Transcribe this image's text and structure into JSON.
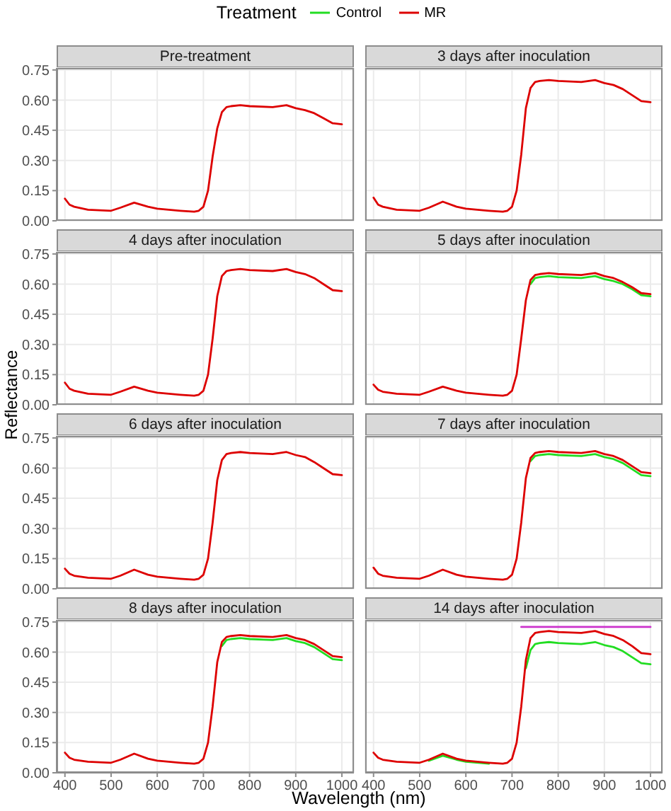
{
  "chart_data": [
    {
      "type": "line",
      "title": "Pre-treatment",
      "legend_title": "Treatment",
      "legend": "top",
      "grid": true,
      "tick_labels": "y",
      "xlim": [
        382,
        1026
      ],
      "xticks": [
        400,
        500,
        600,
        700,
        800,
        900,
        1000
      ],
      "ylim": [
        0,
        0.76
      ],
      "yticks": [
        {
          "value": 0,
          "label": "0.00"
        },
        {
          "value": 0.15,
          "label": "0.15"
        },
        {
          "value": 0.3,
          "label": "0.30"
        },
        {
          "value": 0.45,
          "label": "0.45"
        },
        {
          "value": 0.6,
          "label": "0.60"
        },
        {
          "value": 0.75,
          "label": "0.75"
        }
      ],
      "x": [
        400,
        410,
        420,
        450,
        500,
        520,
        550,
        580,
        600,
        650,
        680,
        690,
        700,
        710,
        720,
        730,
        740,
        750,
        760,
        780,
        800,
        850,
        880,
        900,
        920,
        940,
        960,
        980,
        1000
      ],
      "series": [
        {
          "name": "Control",
          "color": "#22dd22",
          "values": [
            null,
            null,
            null,
            null,
            null,
            null,
            null,
            null,
            null,
            null,
            null,
            null,
            null,
            null,
            null,
            null,
            null,
            null,
            null,
            null,
            null,
            null,
            null,
            null,
            null,
            null,
            null,
            null,
            null
          ]
        },
        {
          "name": "MR",
          "color": "#dd0000",
          "values": [
            0.11,
            0.08,
            0.07,
            0.055,
            0.05,
            0.065,
            0.09,
            0.07,
            0.06,
            0.05,
            0.045,
            0.05,
            0.07,
            0.15,
            0.32,
            0.46,
            0.54,
            0.565,
            0.57,
            0.575,
            0.57,
            0.565,
            0.575,
            0.56,
            0.55,
            0.535,
            0.51,
            0.485,
            0.48
          ]
        }
      ]
    },
    {
      "type": "line",
      "title": "3 days after inoculation",
      "grid": true,
      "tick_labels": false,
      "xlim": [
        382,
        1026
      ],
      "xticks": [
        400,
        500,
        600,
        700,
        800,
        900,
        1000
      ],
      "ylim": [
        0,
        0.76
      ],
      "yticks": [
        0,
        0.15,
        0.3,
        0.45,
        0.6,
        0.75
      ],
      "x": [
        400,
        410,
        420,
        450,
        500,
        520,
        550,
        580,
        600,
        650,
        680,
        690,
        700,
        710,
        720,
        730,
        740,
        750,
        760,
        780,
        800,
        850,
        880,
        900,
        920,
        940,
        960,
        980,
        1000
      ],
      "series": [
        {
          "color": "#22dd22",
          "values": [
            null,
            null,
            null,
            null,
            null,
            null,
            null,
            null,
            null,
            null,
            null,
            null,
            null,
            null,
            null,
            null,
            null,
            null,
            null,
            null,
            null,
            null,
            null,
            null,
            null,
            null,
            null,
            null,
            null
          ]
        },
        {
          "color": "#dd0000",
          "values": [
            0.115,
            0.08,
            0.07,
            0.055,
            0.05,
            0.065,
            0.095,
            0.07,
            0.06,
            0.05,
            0.045,
            0.05,
            0.07,
            0.15,
            0.33,
            0.56,
            0.66,
            0.69,
            0.695,
            0.7,
            0.695,
            0.69,
            0.7,
            0.685,
            0.675,
            0.655,
            0.625,
            0.595,
            0.59
          ]
        }
      ]
    },
    {
      "type": "line",
      "title": "4 days after inoculation",
      "ylabel": "Reflectance",
      "grid": true,
      "tick_labels": "y",
      "xlim": [
        382,
        1026
      ],
      "xticks": [
        400,
        500,
        600,
        700,
        800,
        900,
        1000
      ],
      "ylim": [
        0,
        0.76
      ],
      "yticks": [
        {
          "value": 0,
          "label": "0.00"
        },
        {
          "value": 0.15,
          "label": "0.15"
        },
        {
          "value": 0.3,
          "label": "0.30"
        },
        {
          "value": 0.45,
          "label": "0.45"
        },
        {
          "value": 0.6,
          "label": "0.60"
        },
        {
          "value": 0.75,
          "label": "0.75"
        }
      ],
      "x": [
        400,
        410,
        420,
        450,
        500,
        520,
        550,
        580,
        600,
        650,
        680,
        690,
        700,
        710,
        720,
        730,
        740,
        750,
        760,
        780,
        800,
        850,
        880,
        900,
        920,
        940,
        960,
        980,
        1000
      ],
      "series": [
        {
          "color": "#22dd22",
          "values": [
            null,
            null,
            null,
            null,
            null,
            null,
            null,
            null,
            null,
            null,
            null,
            null,
            null,
            null,
            null,
            null,
            null,
            null,
            null,
            null,
            null,
            null,
            null,
            null,
            null,
            null,
            null,
            null,
            null
          ]
        },
        {
          "color": "#dd0000",
          "values": [
            0.11,
            0.08,
            0.07,
            0.055,
            0.05,
            0.065,
            0.09,
            0.07,
            0.06,
            0.05,
            0.045,
            0.05,
            0.07,
            0.15,
            0.33,
            0.54,
            0.64,
            0.665,
            0.67,
            0.675,
            0.67,
            0.665,
            0.675,
            0.66,
            0.65,
            0.63,
            0.6,
            0.57,
            0.565
          ]
        }
      ]
    },
    {
      "type": "line",
      "title": "5 days after inoculation",
      "grid": true,
      "tick_labels": false,
      "xlim": [
        382,
        1026
      ],
      "xticks": [
        400,
        500,
        600,
        700,
        800,
        900,
        1000
      ],
      "ylim": [
        0,
        0.76
      ],
      "yticks": [
        0,
        0.15,
        0.3,
        0.45,
        0.6,
        0.75
      ],
      "x": [
        400,
        410,
        420,
        450,
        500,
        520,
        550,
        580,
        600,
        650,
        680,
        690,
        700,
        710,
        720,
        730,
        740,
        750,
        760,
        780,
        800,
        850,
        880,
        900,
        920,
        940,
        960,
        980,
        1000
      ],
      "series": [
        {
          "color": "#22dd22",
          "values": [
            null,
            null,
            null,
            null,
            null,
            null,
            null,
            null,
            null,
            null,
            null,
            null,
            null,
            null,
            null,
            null,
            0.6,
            0.63,
            0.635,
            0.64,
            0.635,
            0.63,
            0.64,
            0.625,
            0.615,
            0.6,
            0.575,
            0.545,
            0.54
          ]
        },
        {
          "color": "#dd0000",
          "values": [
            0.1,
            0.075,
            0.065,
            0.055,
            0.05,
            0.065,
            0.09,
            0.07,
            0.06,
            0.05,
            0.045,
            0.05,
            0.07,
            0.15,
            0.33,
            0.52,
            0.62,
            0.645,
            0.65,
            0.655,
            0.65,
            0.645,
            0.655,
            0.64,
            0.63,
            0.61,
            0.585,
            0.555,
            0.55
          ]
        }
      ]
    },
    {
      "type": "line",
      "title": "6 days after inoculation",
      "grid": true,
      "tick_labels": "y",
      "xlim": [
        382,
        1026
      ],
      "xticks": [
        400,
        500,
        600,
        700,
        800,
        900,
        1000
      ],
      "ylim": [
        0,
        0.76
      ],
      "yticks": [
        {
          "value": 0,
          "label": "0.00"
        },
        {
          "value": 0.15,
          "label": "0.15"
        },
        {
          "value": 0.3,
          "label": "0.30"
        },
        {
          "value": 0.45,
          "label": "0.45"
        },
        {
          "value": 0.6,
          "label": "0.60"
        },
        {
          "value": 0.75,
          "label": "0.75"
        }
      ],
      "x": [
        400,
        410,
        420,
        450,
        500,
        520,
        550,
        580,
        600,
        650,
        680,
        690,
        700,
        710,
        720,
        730,
        740,
        750,
        760,
        780,
        800,
        850,
        880,
        900,
        920,
        940,
        960,
        980,
        1000
      ],
      "series": [
        {
          "color": "#22dd22",
          "values": [
            null,
            null,
            null,
            null,
            null,
            null,
            null,
            null,
            null,
            null,
            null,
            null,
            null,
            null,
            null,
            null,
            null,
            null,
            null,
            null,
            null,
            null,
            null,
            null,
            null,
            null,
            null,
            null,
            null
          ]
        },
        {
          "color": "#dd0000",
          "values": [
            0.1,
            0.075,
            0.065,
            0.055,
            0.05,
            0.065,
            0.095,
            0.07,
            0.06,
            0.05,
            0.045,
            0.05,
            0.07,
            0.15,
            0.33,
            0.54,
            0.64,
            0.67,
            0.675,
            0.68,
            0.675,
            0.67,
            0.68,
            0.665,
            0.655,
            0.63,
            0.6,
            0.57,
            0.565
          ]
        }
      ]
    },
    {
      "type": "line",
      "title": "7 days after inoculation",
      "grid": true,
      "tick_labels": false,
      "xlim": [
        382,
        1026
      ],
      "xticks": [
        400,
        500,
        600,
        700,
        800,
        900,
        1000
      ],
      "ylim": [
        0,
        0.76
      ],
      "yticks": [
        0,
        0.15,
        0.3,
        0.45,
        0.6,
        0.75
      ],
      "x": [
        400,
        410,
        420,
        450,
        500,
        520,
        550,
        580,
        600,
        650,
        680,
        690,
        700,
        710,
        720,
        730,
        740,
        750,
        760,
        780,
        800,
        850,
        880,
        900,
        920,
        940,
        960,
        980,
        1000
      ],
      "series": [
        {
          "color": "#22dd22",
          "values": [
            null,
            null,
            null,
            null,
            null,
            null,
            null,
            null,
            null,
            null,
            null,
            null,
            null,
            null,
            null,
            null,
            0.635,
            0.66,
            0.665,
            0.67,
            0.665,
            0.66,
            0.67,
            0.655,
            0.645,
            0.625,
            0.595,
            0.565,
            0.56
          ]
        },
        {
          "color": "#dd0000",
          "values": [
            0.105,
            0.075,
            0.065,
            0.055,
            0.05,
            0.065,
            0.095,
            0.07,
            0.06,
            0.05,
            0.045,
            0.05,
            0.07,
            0.15,
            0.33,
            0.55,
            0.65,
            0.675,
            0.68,
            0.685,
            0.68,
            0.675,
            0.685,
            0.67,
            0.66,
            0.64,
            0.61,
            0.58,
            0.575
          ]
        }
      ]
    },
    {
      "type": "line",
      "title": "8 days after inoculation",
      "xlabel": "Wavelength (nm)",
      "grid": true,
      "xlim": [
        382,
        1026
      ],
      "xticks": [
        400,
        500,
        600,
        700,
        800,
        900,
        1000
      ],
      "ylim": [
        0,
        0.76
      ],
      "yticks": [
        {
          "value": 0,
          "label": "0.00"
        },
        {
          "value": 0.15,
          "label": "0.15"
        },
        {
          "value": 0.3,
          "label": "0.30"
        },
        {
          "value": 0.45,
          "label": "0.45"
        },
        {
          "value": 0.6,
          "label": "0.60"
        },
        {
          "value": 0.75,
          "label": "0.75"
        }
      ],
      "x": [
        400,
        410,
        420,
        450,
        500,
        520,
        550,
        580,
        600,
        650,
        680,
        690,
        700,
        710,
        720,
        730,
        740,
        750,
        760,
        780,
        800,
        850,
        880,
        900,
        920,
        940,
        960,
        980,
        1000
      ],
      "series": [
        {
          "color": "#22dd22",
          "values": [
            null,
            null,
            null,
            null,
            null,
            null,
            null,
            null,
            null,
            null,
            null,
            null,
            null,
            null,
            null,
            null,
            0.63,
            0.66,
            0.665,
            0.67,
            0.665,
            0.66,
            0.67,
            0.655,
            0.645,
            0.625,
            0.595,
            0.565,
            0.56
          ]
        },
        {
          "color": "#dd0000",
          "values": [
            0.1,
            0.075,
            0.065,
            0.055,
            0.05,
            0.065,
            0.095,
            0.07,
            0.06,
            0.05,
            0.045,
            0.05,
            0.07,
            0.15,
            0.33,
            0.55,
            0.65,
            0.675,
            0.68,
            0.685,
            0.68,
            0.675,
            0.685,
            0.67,
            0.66,
            0.64,
            0.61,
            0.58,
            0.575
          ]
        }
      ]
    },
    {
      "type": "line",
      "title": "14 days after inoculation",
      "grid": true,
      "tick_labels": "x",
      "xlim": [
        382,
        1026
      ],
      "xticks": [
        400,
        500,
        600,
        700,
        800,
        900,
        1000
      ],
      "ylim": [
        0,
        0.76
      ],
      "yticks": [
        0,
        0.15,
        0.3,
        0.45,
        0.6,
        0.75
      ],
      "x": [
        400,
        410,
        420,
        450,
        500,
        520,
        550,
        580,
        600,
        650,
        680,
        690,
        700,
        710,
        720,
        730,
        740,
        750,
        760,
        780,
        800,
        850,
        880,
        900,
        920,
        940,
        960,
        980,
        1000
      ],
      "series": [
        {
          "color": "#22dd22",
          "values": [
            null,
            null,
            null,
            null,
            null,
            0.06,
            0.085,
            0.065,
            0.055,
            0.045,
            null,
            null,
            null,
            null,
            null,
            0.52,
            0.61,
            0.64,
            0.645,
            0.65,
            0.645,
            0.64,
            0.65,
            0.635,
            0.625,
            0.605,
            0.575,
            0.545,
            0.54
          ]
        },
        {
          "color": "#dd0000",
          "values": [
            0.1,
            0.075,
            0.065,
            0.055,
            0.05,
            0.065,
            0.095,
            0.07,
            0.06,
            0.05,
            0.045,
            0.05,
            0.07,
            0.15,
            0.33,
            0.56,
            0.67,
            0.695,
            0.7,
            0.705,
            0.7,
            0.695,
            0.705,
            0.69,
            0.68,
            0.66,
            0.63,
            0.595,
            0.59
          ]
        },
        {
          "type": "line",
          "color": "#cc33cc",
          "x": [
            720,
            1000
          ],
          "values": [
            0.725,
            0.725
          ]
        }
      ]
    }
  ]
}
